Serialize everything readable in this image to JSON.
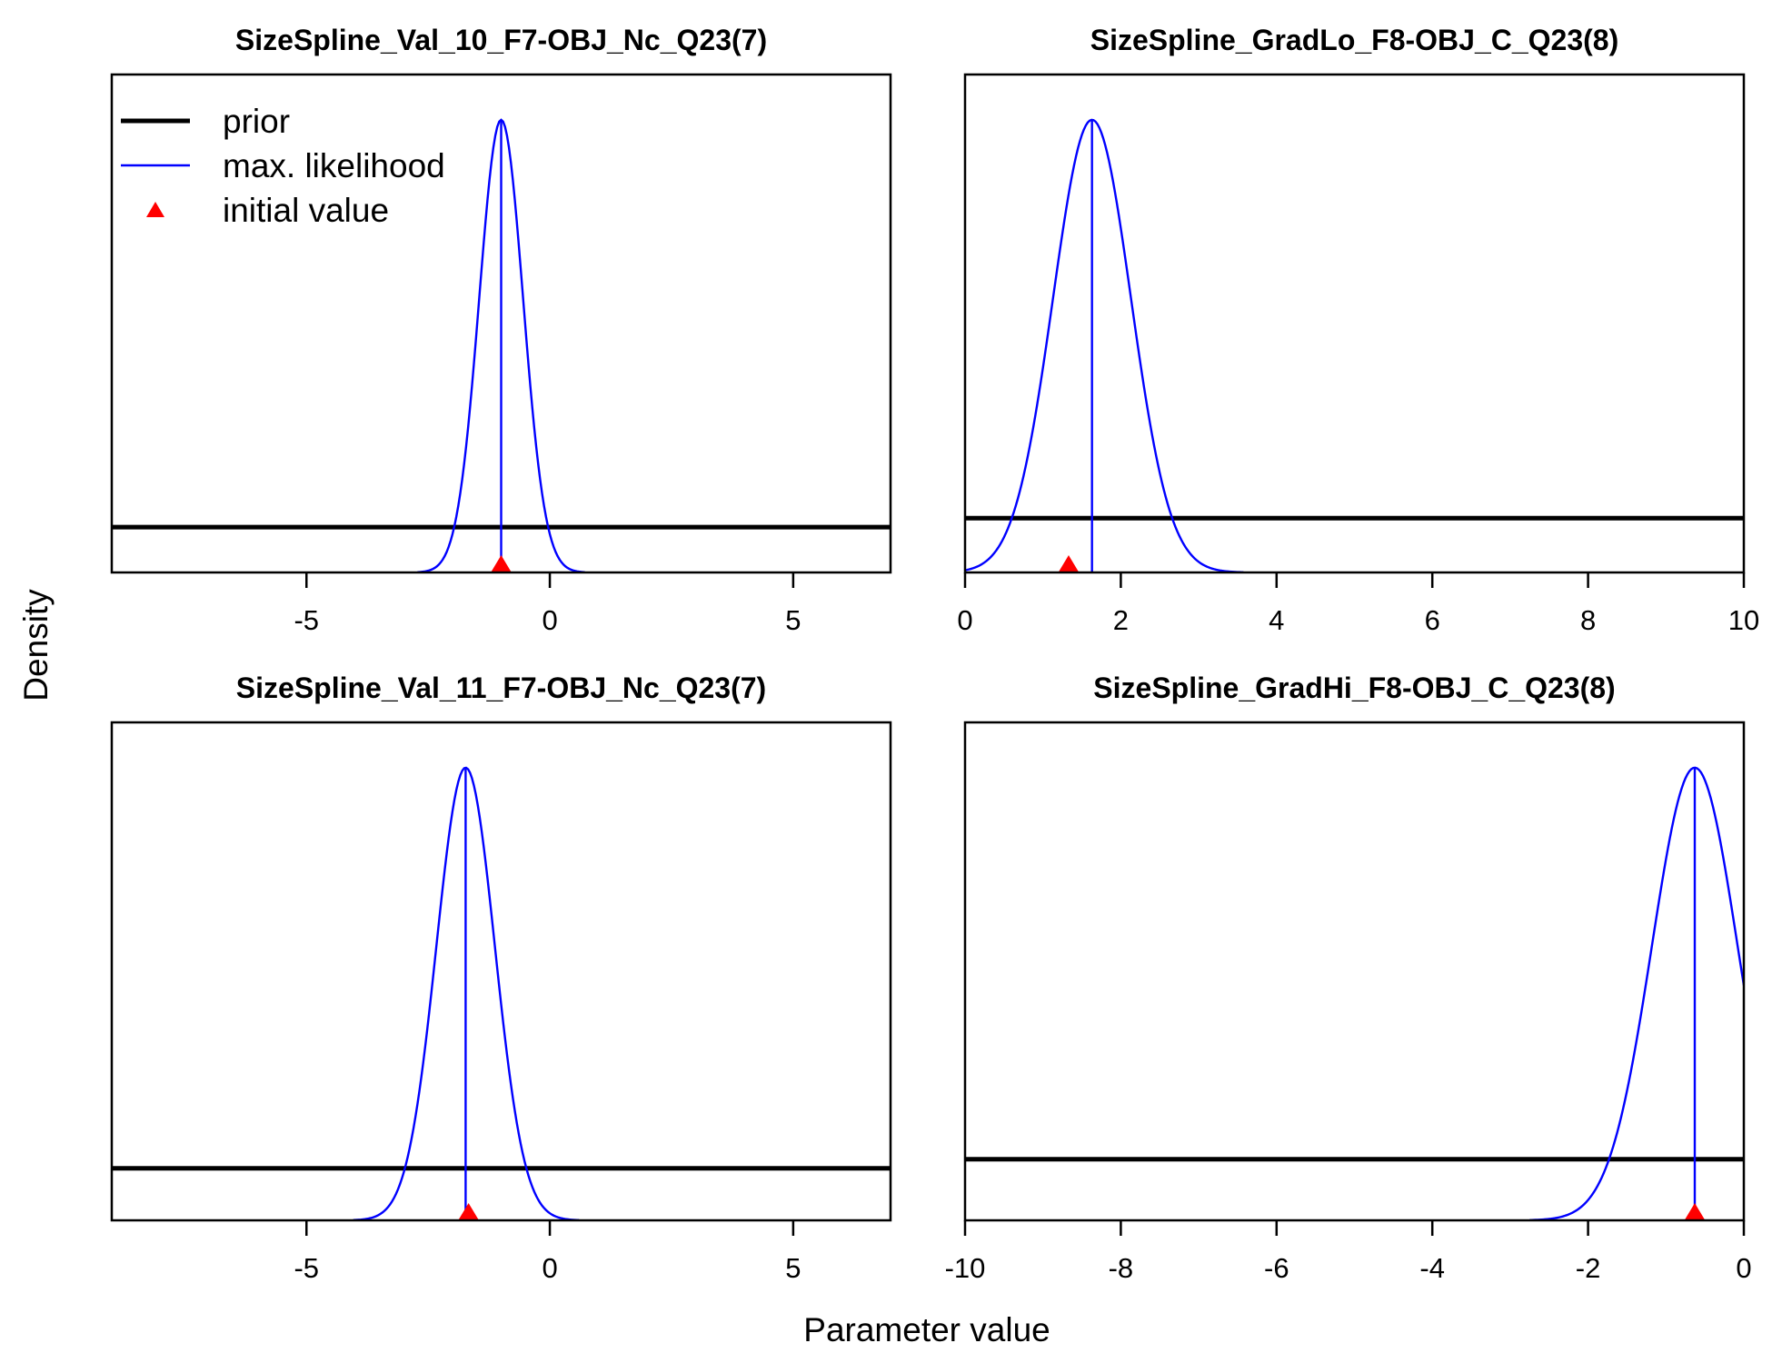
{
  "figure": {
    "xlabel": "Parameter value",
    "ylabel": "Density",
    "legend": {
      "placement": "top-left of first panel",
      "items": [
        {
          "label": "prior",
          "kind": "line",
          "color": "#000000"
        },
        {
          "label": "max. likelihood",
          "kind": "line",
          "color": "#0000ff"
        },
        {
          "label": "initial value",
          "kind": "triangle",
          "color": "#ff0000"
        }
      ]
    }
  },
  "chart_data": [
    {
      "type": "line",
      "title": "SizeSpline_Val_10_F7-OBJ_Nc_Q23(7)",
      "xlim": [
        -9,
        7
      ],
      "ylim": [
        0,
        1.1
      ],
      "xticks": [
        -5,
        0,
        5
      ],
      "xtick_labels": [
        "-5",
        "0",
        "5"
      ],
      "prior_level": 0.1,
      "mle": -1.0,
      "sd": 0.45,
      "initial_value": -1.0,
      "series": [
        {
          "name": "prior",
          "color": "#000000"
        },
        {
          "name": "max. likelihood",
          "color": "#0000ff"
        }
      ]
    },
    {
      "type": "line",
      "title": "SizeSpline_GradLo_F8-OBJ_C_Q23(8)",
      "xlim": [
        0,
        10
      ],
      "ylim": [
        0,
        1.1
      ],
      "xticks": [
        0,
        2,
        4,
        6,
        8,
        10
      ],
      "xtick_labels": [
        "0",
        "2",
        "4",
        "6",
        "8",
        "10"
      ],
      "prior_level": 0.12,
      "mle": 1.63,
      "sd": 0.5,
      "initial_value": 1.33,
      "series": [
        {
          "name": "prior",
          "color": "#000000"
        },
        {
          "name": "max. likelihood",
          "color": "#0000ff"
        }
      ]
    },
    {
      "type": "line",
      "title": "SizeSpline_Val_11_F7-OBJ_Nc_Q23(7)",
      "xlim": [
        -9,
        7
      ],
      "ylim": [
        0,
        1.1
      ],
      "xticks": [
        -5,
        0,
        5
      ],
      "xtick_labels": [
        "-5",
        "0",
        "5"
      ],
      "prior_level": 0.115,
      "mle": -1.73,
      "sd": 0.6,
      "initial_value": -1.67,
      "series": [
        {
          "name": "prior",
          "color": "#000000"
        },
        {
          "name": "max. likelihood",
          "color": "#0000ff"
        }
      ]
    },
    {
      "type": "line",
      "title": "SizeSpline_GradHi_F8-OBJ_C_Q23(8)",
      "xlim": [
        -10,
        0
      ],
      "ylim": [
        0,
        1.1
      ],
      "xticks": [
        -10,
        -8,
        -6,
        -4,
        -2,
        0
      ],
      "xtick_labels": [
        "-10",
        "-8",
        "-6",
        "-4",
        "-2",
        "0"
      ],
      "prior_level": 0.135,
      "mle": -0.63,
      "sd": 0.55,
      "initial_value": -0.63,
      "series": [
        {
          "name": "prior",
          "color": "#000000"
        },
        {
          "name": "max. likelihood",
          "color": "#0000ff"
        }
      ]
    }
  ]
}
